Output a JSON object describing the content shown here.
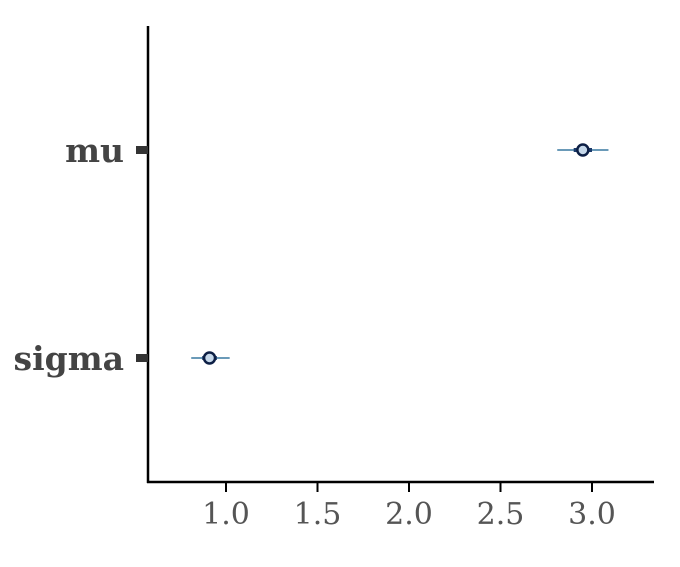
{
  "chart_data": {
    "type": "interval",
    "title": "",
    "xlabel": "",
    "ylabel": "",
    "xlim": [
      0.58,
      3.35
    ],
    "x_ticks": [
      1.0,
      1.5,
      2.0,
      2.5,
      3.0
    ],
    "x_tick_labels": [
      "1.0",
      "1.5",
      "2.0",
      "2.5",
      "3.0"
    ],
    "grid": false,
    "parameters": [
      {
        "name": "mu",
        "point": 2.95,
        "inner": [
          2.9,
          3.0
        ],
        "outer": [
          2.81,
          3.09
        ]
      },
      {
        "name": "sigma",
        "point": 0.91,
        "inner": [
          0.87,
          0.95
        ],
        "outer": [
          0.81,
          1.02
        ]
      }
    ],
    "colors": {
      "outer_line": "#6a9ab8",
      "inner_line": "#1b3a6b",
      "point_fill": "#c6d8ea",
      "point_edge": "#0d1f45",
      "axis": "#000000",
      "y_tick": "#333333"
    }
  }
}
